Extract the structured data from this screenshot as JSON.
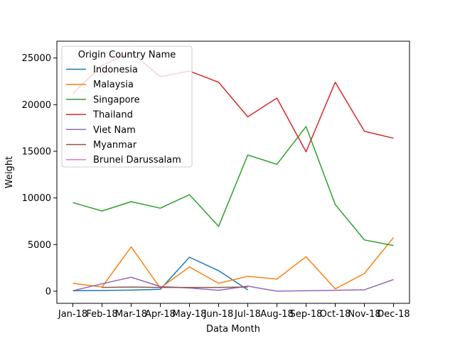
{
  "chart_data": {
    "type": "line",
    "xlabel": "Data Month",
    "ylabel": "Weight",
    "categories": [
      "Jan-18",
      "Feb-18",
      "Mar-18",
      "Apr-18",
      "May-18",
      "Jun-18",
      "Jul-18",
      "Aug-18",
      "Sep-18",
      "Oct-18",
      "Nov-18",
      "Dec-18"
    ],
    "ylim": [
      -1300,
      26800
    ],
    "yticks": [
      0,
      5000,
      10000,
      15000,
      20000,
      25000
    ],
    "grid": false,
    "legend": {
      "title": "Origin Country Name",
      "placement": "upper-left"
    },
    "series": [
      {
        "name": "Indonesia",
        "color": "#1f77b4",
        "values": [
          50,
          80,
          120,
          200,
          3650,
          2200,
          150,
          null,
          null,
          null,
          null,
          null
        ]
      },
      {
        "name": "Malaysia",
        "color": "#ff7f0e",
        "values": [
          850,
          450,
          4750,
          350,
          2600,
          850,
          1600,
          1300,
          3700,
          250,
          1900,
          5750
        ]
      },
      {
        "name": "Singapore",
        "color": "#2ca02c",
        "values": [
          9500,
          8600,
          9600,
          8900,
          10350,
          6950,
          14600,
          13600,
          17650,
          9300,
          5500,
          4900
        ]
      },
      {
        "name": "Thailand",
        "color": "#d62728",
        "values": [
          21200,
          24200,
          25600,
          23000,
          23600,
          22400,
          18700,
          20700,
          14950,
          22400,
          17150,
          16400
        ]
      },
      {
        "name": "Viet Nam",
        "color": "#9467bd",
        "values": [
          50,
          800,
          1500,
          500,
          350,
          100,
          550,
          0,
          50,
          100,
          150,
          1250
        ]
      },
      {
        "name": "Myanmar",
        "color": "#8c564b",
        "values": [
          null,
          400,
          450,
          400,
          400,
          400,
          450,
          null,
          null,
          null,
          null,
          null
        ]
      },
      {
        "name": "Brunei Darussalam",
        "color": "#e377c2",
        "values": [
          null,
          null,
          null,
          null,
          null,
          null,
          null,
          null,
          null,
          null,
          null,
          null
        ]
      }
    ]
  }
}
